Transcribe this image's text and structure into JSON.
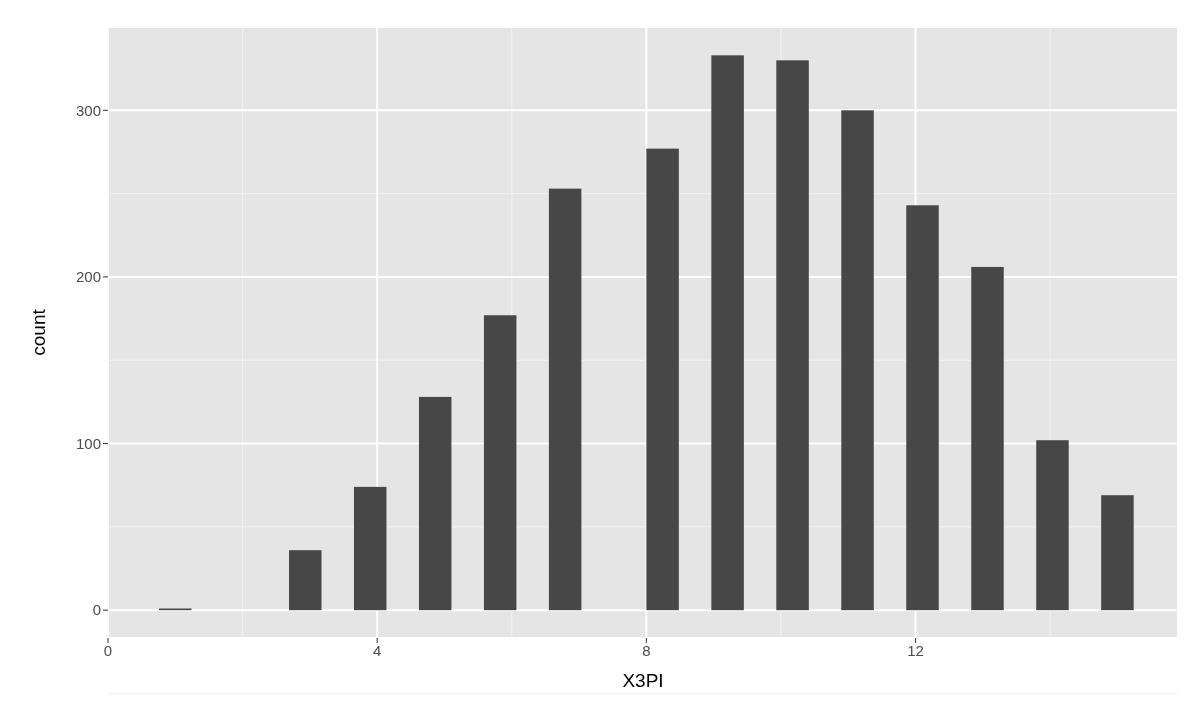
{
  "chart_data": {
    "type": "histogram",
    "xlabel": "X3PI",
    "ylabel": "count",
    "bins": [
      0.7586,
      1.2414,
      1.7241,
      2.2069,
      2.6897,
      3.1724,
      3.6552,
      4.1379,
      4.6207,
      5.1034,
      5.5862,
      6.069,
      6.5517,
      7.0345,
      7.5172,
      8.0,
      8.4828,
      8.9655,
      9.4483,
      9.931,
      10.4138,
      10.8966,
      11.3793,
      11.8621,
      12.3448,
      12.8276,
      13.3103,
      13.7931,
      14.2759,
      14.7586,
      15.2414
    ],
    "values": [
      1,
      0,
      0,
      0,
      36,
      0,
      74,
      0,
      128,
      0,
      177,
      0,
      253,
      0,
      0,
      277,
      0,
      333,
      0,
      330,
      0,
      300,
      0,
      243,
      0,
      206,
      0,
      102,
      0,
      69
    ],
    "color": "#474747",
    "xlim": [
      0,
      15.9
    ],
    "xticks": [
      0,
      4,
      8,
      12
    ],
    "ylim": [
      -16.7,
      350
    ],
    "yticks": [
      0,
      100,
      200,
      300
    ],
    "grid": true
  }
}
